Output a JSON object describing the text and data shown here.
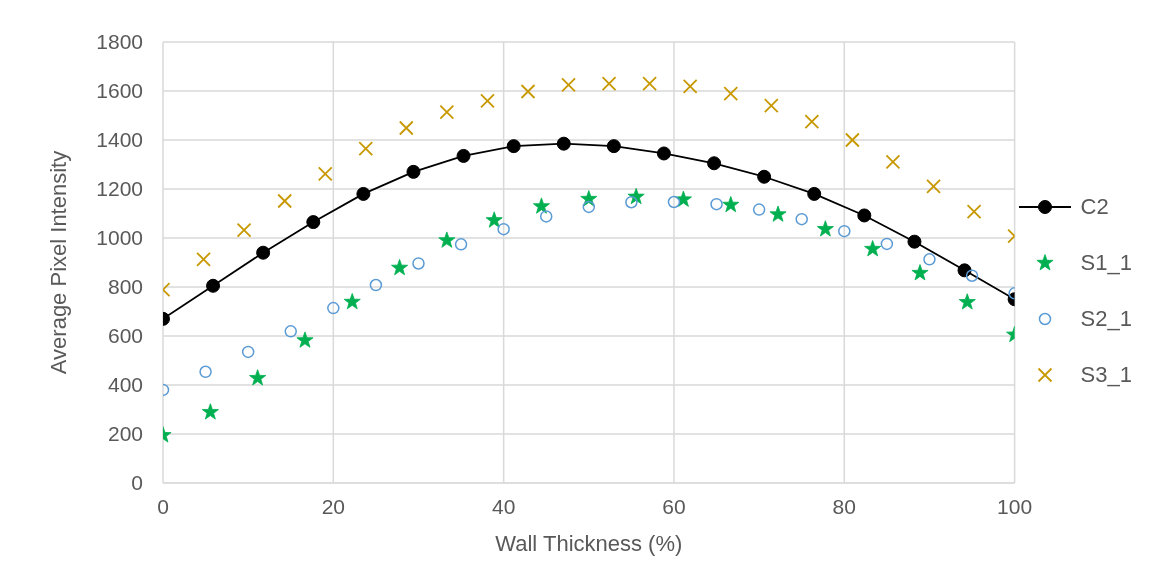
{
  "chart_data": {
    "type": "scatter",
    "xlabel": "Wall Thickness (%)",
    "ylabel": "Average Pixel Intensity",
    "xlim": [
      0,
      100
    ],
    "xticks": [
      0,
      20,
      40,
      60,
      80,
      100
    ],
    "ylim": [
      0,
      1800
    ],
    "yticks": [
      0,
      200,
      400,
      600,
      800,
      1000,
      1200,
      1400,
      1600,
      1800
    ],
    "grid": true,
    "legend": "right",
    "series": [
      {
        "name": "C2",
        "type": "line",
        "marker": "circle",
        "color": "#000000",
        "x": [
          0,
          5.88,
          11.76,
          17.65,
          23.53,
          29.41,
          35.29,
          41.18,
          47.06,
          52.94,
          58.82,
          64.71,
          70.59,
          76.47,
          82.35,
          88.24,
          94.12,
          100
        ],
        "values": [
          670,
          805,
          940,
          1065,
          1180,
          1270,
          1335,
          1375,
          1385,
          1375,
          1345,
          1305,
          1250,
          1180,
          1092,
          985,
          868,
          750
        ]
      },
      {
        "name": "S1_1",
        "type": "scatter",
        "marker": "star",
        "color": "#00b050",
        "x": [
          0,
          5.56,
          11.11,
          16.67,
          22.22,
          27.78,
          33.33,
          38.89,
          44.44,
          50,
          55.56,
          61.11,
          66.67,
          72.22,
          77.78,
          83.33,
          88.89,
          94.44,
          100
        ],
        "values": [
          195,
          289,
          428,
          582,
          739,
          878,
          990,
          1072,
          1129,
          1159,
          1168,
          1157,
          1135,
          1096,
          1036,
          955,
          857,
          738,
          605
        ]
      },
      {
        "name": "S2_1",
        "type": "scatter",
        "marker": "circle",
        "color": "#5b9bd5",
        "x": [
          0,
          5,
          10,
          15,
          20,
          25,
          30,
          35,
          40,
          45,
          50,
          55,
          60,
          65,
          70,
          75,
          80,
          85,
          90,
          95,
          100
        ],
        "values": [
          380,
          454,
          535,
          619,
          714,
          808,
          896,
          974,
          1036,
          1088,
          1127,
          1146,
          1147,
          1138,
          1116,
          1077,
          1028,
          976,
          913,
          846,
          774
        ]
      },
      {
        "name": "S3_1",
        "type": "scatter",
        "marker": "cross",
        "color": "#c89800",
        "x": [
          0,
          4.76,
          9.52,
          14.29,
          19.05,
          23.81,
          28.57,
          33.33,
          38.1,
          42.86,
          47.62,
          52.38,
          57.14,
          61.9,
          66.67,
          71.43,
          76.19,
          80.95,
          85.71,
          90.48,
          95.24,
          100
        ],
        "values": [
          789,
          913,
          1032,
          1151,
          1262,
          1365,
          1449,
          1514,
          1560,
          1598,
          1625,
          1630,
          1630,
          1619,
          1589,
          1540,
          1475,
          1400,
          1311,
          1211,
          1108,
          1008
        ]
      }
    ]
  }
}
